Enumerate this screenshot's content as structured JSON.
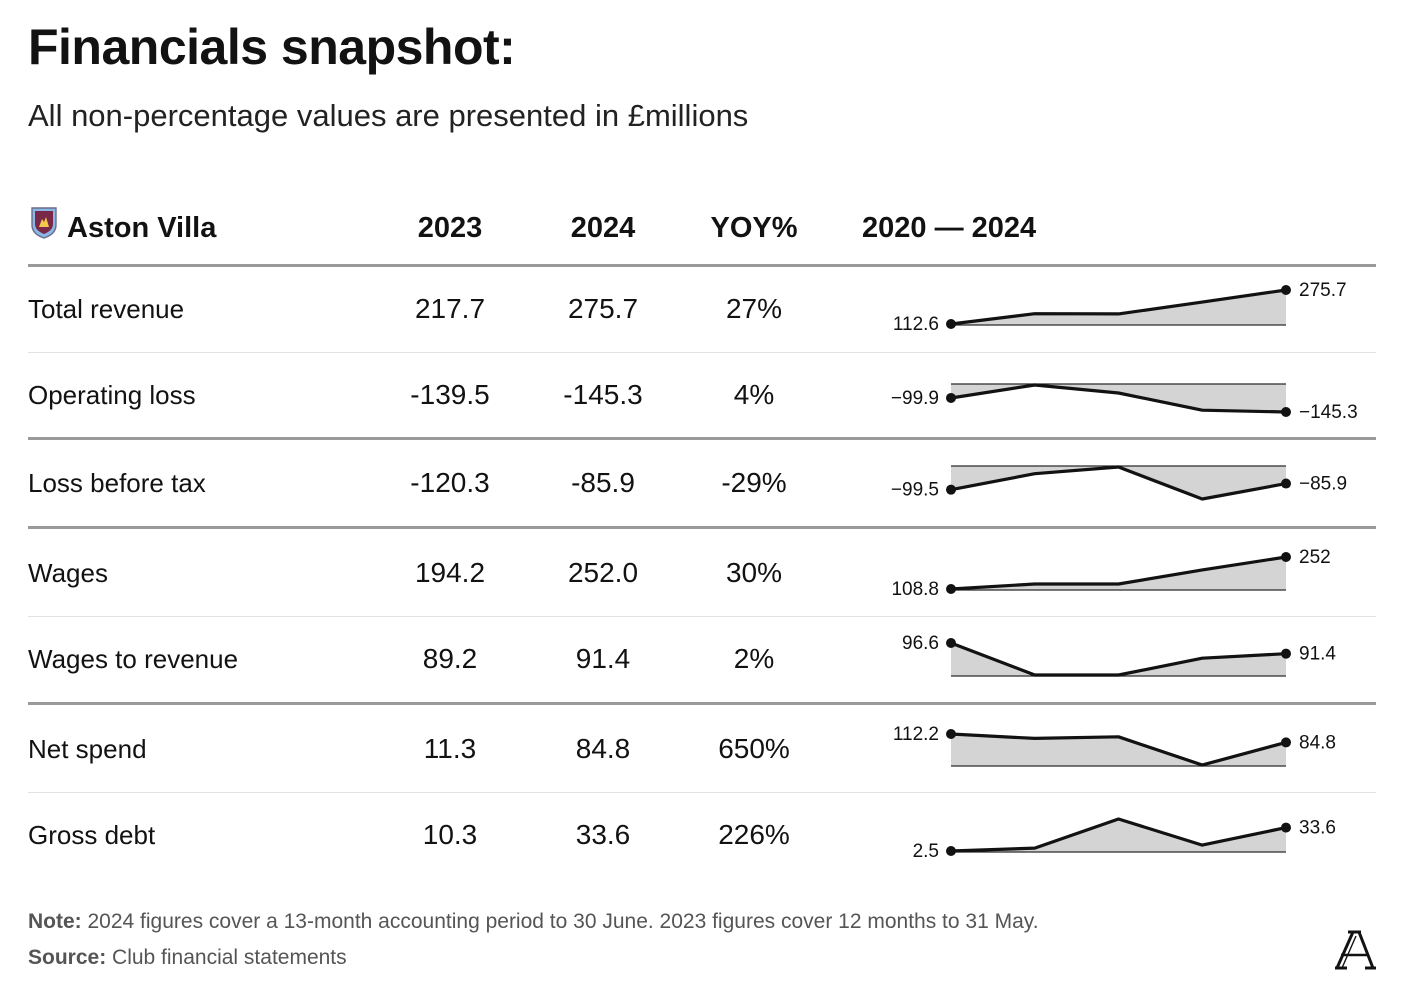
{
  "title": "Financials snapshot:",
  "subtitle": "All non-percentage values are presented in £millions",
  "header": {
    "club": "Aston Villa",
    "col_2023": "2023",
    "col_2024": "2024",
    "col_yoy": "YOY%",
    "col_trend": "2020 — 2024",
    "crest_icon": "club-crest-icon"
  },
  "rows": [
    {
      "label": "Total revenue",
      "v2023": "217.7",
      "v2024": "275.7",
      "yoy": "27%"
    },
    {
      "label": "Operating loss",
      "v2023": "-139.5",
      "v2024": "-145.3",
      "yoy": "4%"
    },
    {
      "label": "Loss before tax",
      "v2023": "-120.3",
      "v2024": "-85.9",
      "yoy": "-29%"
    },
    {
      "label": "Wages",
      "v2023": "194.2",
      "v2024": "252.0",
      "yoy": "30%"
    },
    {
      "label": "Wages to revenue",
      "v2023": "89.2",
      "v2024": "91.4",
      "yoy": "2%"
    },
    {
      "label": "Net spend",
      "v2023": "11.3",
      "v2024": "84.8",
      "yoy": "650%"
    },
    {
      "label": "Gross debt",
      "v2023": "10.3",
      "v2024": "33.6",
      "yoy": "226%"
    }
  ],
  "chart_data": {
    "type": "line",
    "x": [
      2020,
      2021,
      2022,
      2023,
      2024
    ],
    "series": [
      {
        "values": [
          112.6,
          162,
          161,
          217.7,
          275.7
        ],
        "start_label": "112.6",
        "end_label": "275.7"
      },
      {
        "values": [
          -99.9,
          -58,
          -84,
          -139.5,
          -145.3
        ],
        "start_label": "−99.9",
        "end_label": "−145.3"
      },
      {
        "values": [
          -99.5,
          -64,
          -49,
          -120.3,
          -85.9
        ],
        "start_label": "−99.5",
        "end_label": "−85.9"
      },
      {
        "values": [
          108.8,
          131,
          131,
          194.2,
          252
        ],
        "start_label": "108.8",
        "end_label": "252"
      },
      {
        "values": [
          96.6,
          81,
          81,
          89.2,
          91.4
        ],
        "start_label": "96.6",
        "end_label": "91.4"
      },
      {
        "values": [
          112.2,
          98,
          103,
          11.3,
          84.8
        ],
        "start_label": "112.2",
        "end_label": "84.8"
      },
      {
        "values": [
          2.5,
          6.3,
          45,
          10.3,
          33.6
        ],
        "start_label": "2.5",
        "end_label": "33.6"
      }
    ],
    "colors": {
      "line": "#121212",
      "fill": "#d4d4d4",
      "baseline": "#2a2a2a"
    }
  },
  "footer": {
    "note_label": "Note:",
    "note_text": " 2024 figures cover a 13-month accounting period to 30 June. 2023 figures cover 12 months to 31 May.",
    "source_label": "Source:",
    "source_text": " Club financial statements",
    "logo_icon": "the-athletic-logo-icon"
  }
}
